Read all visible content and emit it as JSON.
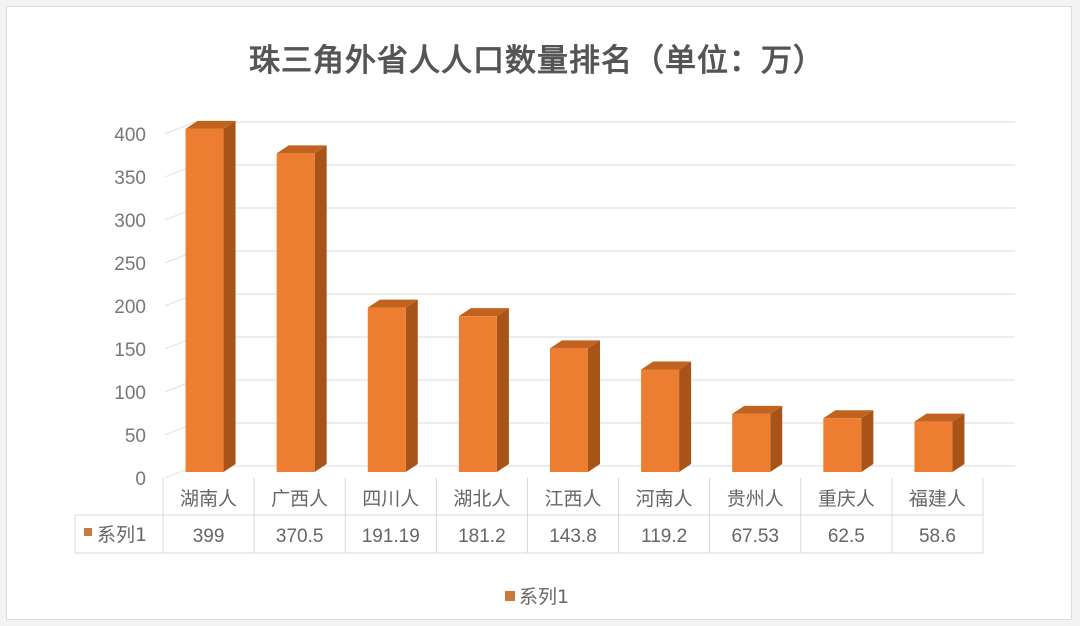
{
  "chart_data": {
    "type": "bar",
    "title": "珠三角外省人人口数量排名（单位：万）",
    "categories": [
      "湖南人",
      "广西人",
      "四川人",
      "湖北人",
      "江西人",
      "河南人",
      "贵州人",
      "重庆人",
      "福建人"
    ],
    "series": [
      {
        "name": "系列1",
        "values": [
          399,
          370.5,
          191.19,
          181.2,
          143.8,
          119.2,
          67.53,
          62.5,
          58.6
        ],
        "color": "#ed7d31"
      }
    ],
    "xlabel": "",
    "ylabel": "",
    "ylim": [
      0,
      400
    ],
    "yticks": [
      0,
      50,
      100,
      150,
      200,
      250,
      300,
      350,
      400
    ],
    "grid": true,
    "legend_position": "bottom",
    "data_table": true,
    "style": "3d-column"
  },
  "legend": {
    "label": "系列1"
  }
}
